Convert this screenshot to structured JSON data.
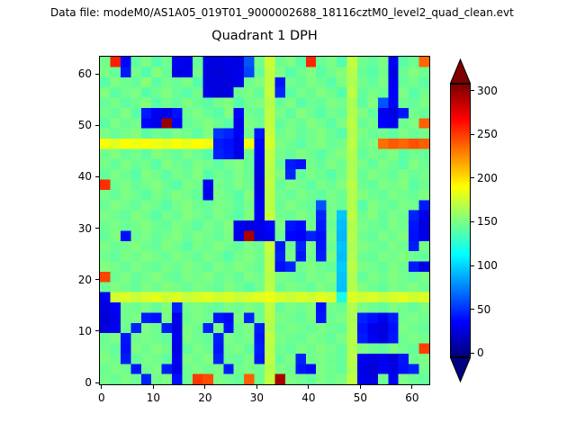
{
  "figure": {
    "datafile_label": "Data file: modeM0/AS1A05_019T01_9000002688_18116cztM0_level2_quad_clean.evt",
    "title": "Quadrant 1 DPH",
    "background": "#ffffff"
  },
  "chart_data": {
    "type": "heatmap",
    "title": "Quadrant 1 DPH",
    "xlabel": "",
    "ylabel": "",
    "x_ticks": [
      0,
      10,
      20,
      30,
      40,
      50,
      60
    ],
    "y_ticks": [
      0,
      10,
      20,
      30,
      40,
      50,
      60
    ],
    "x_range": [
      0,
      64
    ],
    "y_range": [
      0,
      64
    ],
    "colormap": "jet",
    "colorbar": {
      "ticks": [
        0,
        50,
        100,
        150,
        200,
        250,
        300
      ],
      "vmin": -5,
      "vmax": 308,
      "extend": "both",
      "position": "right"
    },
    "values_orientation": "rows top-to-bottom (y=63 down to y=0), columns left-to-right (x=0 to x=63)",
    "values_note": "32x32 downsampled estimate of the 64x64 detector pixel counts read from the colors",
    "values": [
      [
        148,
        260,
        35,
        142,
        150,
        138,
        146,
        30,
        28,
        144,
        26,
        24,
        27,
        25,
        60,
        148,
        175,
        146,
        152,
        139,
        258,
        145,
        150,
        137,
        172,
        147,
        143,
        150,
        32,
        140,
        146,
        238
      ],
      [
        150,
        144,
        40,
        148,
        137,
        153,
        145,
        26,
        29,
        147,
        25,
        22,
        26,
        28,
        55,
        143,
        172,
        150,
        138,
        146,
        152,
        140,
        147,
        153,
        168,
        144,
        139,
        148,
        27,
        145,
        152,
        146
      ],
      [
        139,
        151,
        146,
        143,
        155,
        140,
        148,
        145,
        150,
        138,
        24,
        26,
        23,
        27,
        146,
        152,
        170,
        40,
        147,
        143,
        150,
        146,
        139,
        151,
        166,
        148,
        142,
        150,
        30,
        144,
        148,
        141
      ],
      [
        152,
        140,
        147,
        150,
        138,
        146,
        152,
        144,
        139,
        148,
        27,
        23,
        25,
        146,
        150,
        143,
        173,
        45,
        140,
        148,
        145,
        152,
        146,
        138,
        170,
        143,
        149,
        145,
        33,
        150,
        139,
        147
      ],
      [
        144,
        149,
        141,
        146,
        153,
        139,
        147,
        143,
        151,
        145,
        140,
        148,
        152,
        138,
        147,
        150,
        168,
        144,
        151,
        139,
        146,
        143,
        150,
        147,
        165,
        141,
        152,
        60,
        35,
        146,
        143,
        150
      ],
      [
        147,
        143,
        152,
        139,
        42,
        30,
        27,
        38,
        146,
        150,
        144,
        139,
        152,
        35,
        147,
        143,
        170,
        149,
        141,
        153,
        146,
        139,
        148,
        144,
        167,
        151,
        142,
        30,
        26,
        40,
        147,
        143
      ],
      [
        141,
        150,
        145,
        148,
        35,
        28,
        300,
        33,
        143,
        147,
        152,
        145,
        139,
        28,
        150,
        146,
        172,
        142,
        149,
        144,
        152,
        147,
        140,
        150,
        169,
        144,
        148,
        34,
        29,
        146,
        151,
        239
      ],
      [
        150,
        144,
        148,
        152,
        140,
        146,
        143,
        150,
        147,
        141,
        152,
        50,
        45,
        30,
        148,
        40,
        174,
        146,
        150,
        143,
        147,
        152,
        145,
        139,
        168,
        150,
        144,
        147,
        141,
        150,
        145,
        148
      ],
      [
        188,
        182,
        190,
        185,
        192,
        186,
        183,
        189,
        184,
        191,
        186,
        42,
        38,
        28,
        188,
        35,
        178,
        150,
        146,
        141,
        148,
        152,
        144,
        148,
        170,
        146,
        150,
        235,
        242,
        238,
        244,
        240
      ],
      [
        146,
        151,
        143,
        148,
        140,
        152,
        147,
        143,
        150,
        145,
        139,
        44,
        40,
        26,
        146,
        32,
        172,
        148,
        143,
        151,
        146,
        140,
        148,
        152,
        167,
        143,
        149,
        146,
        152,
        140,
        147,
        144
      ],
      [
        149,
        142,
        151,
        145,
        148,
        139,
        152,
        146,
        143,
        150,
        147,
        141,
        148,
        152,
        145,
        28,
        170,
        144,
        42,
        38,
        148,
        143,
        151,
        146,
        165,
        149,
        142,
        150,
        146,
        139,
        152,
        145
      ],
      [
        143,
        150,
        146,
        139,
        152,
        147,
        141,
        149,
        145,
        152,
        138,
        147,
        143,
        150,
        146,
        26,
        168,
        151,
        45,
        143,
        150,
        146,
        139,
        148,
        166,
        144,
        151,
        147,
        143,
        150,
        145,
        148
      ],
      [
        255,
        146,
        150,
        143,
        148,
        152,
        145,
        139,
        150,
        147,
        32,
        148,
        144,
        151,
        146,
        25,
        171,
        143,
        150,
        147,
        141,
        149,
        145,
        152,
        169,
        146,
        143,
        150,
        147,
        152,
        140,
        146
      ],
      [
        148,
        143,
        151,
        146,
        140,
        149,
        145,
        152,
        147,
        143,
        28,
        150,
        146,
        139,
        152,
        27,
        169,
        147,
        143,
        150,
        146,
        141,
        149,
        145,
        167,
        152,
        146,
        143,
        150,
        147,
        144,
        151
      ],
      [
        145,
        152,
        147,
        143,
        150,
        146,
        139,
        148,
        152,
        146,
        143,
        150,
        147,
        141,
        149,
        30,
        170,
        145,
        152,
        146,
        143,
        60,
        148,
        145,
        168,
        139,
        152,
        146,
        143,
        150,
        147,
        42
      ],
      [
        150,
        146,
        143,
        151,
        147,
        140,
        148,
        145,
        152,
        147,
        143,
        150,
        146,
        139,
        152,
        32,
        172,
        148,
        144,
        151,
        146,
        45,
        149,
        95,
        170,
        146,
        152,
        143,
        150,
        146,
        44,
        28
      ],
      [
        146,
        150,
        144,
        148,
        152,
        146,
        143,
        150,
        147,
        141,
        149,
        145,
        152,
        30,
        26,
        28,
        35,
        150,
        40,
        36,
        148,
        42,
        146,
        92,
        166,
        150,
        146,
        143,
        151,
        147,
        40,
        25
      ],
      [
        143,
        151,
        38,
        146,
        150,
        143,
        148,
        152,
        145,
        150,
        147,
        143,
        150,
        27,
        295,
        25,
        30,
        146,
        35,
        32,
        44,
        38,
        150,
        90,
        168,
        147,
        143,
        150,
        146,
        152,
        38,
        27
      ],
      [
        150,
        145,
        148,
        152,
        146,
        143,
        151,
        147,
        140,
        149,
        146,
        152,
        147,
        143,
        150,
        146,
        174,
        40,
        147,
        44,
        150,
        40,
        146,
        94,
        165,
        151,
        147,
        144,
        150,
        146,
        42,
        148
      ],
      [
        147,
        143,
        150,
        146,
        152,
        148,
        144,
        151,
        147,
        143,
        150,
        146,
        139,
        148,
        152,
        146,
        170,
        43,
        150,
        40,
        147,
        42,
        151,
        92,
        167,
        146,
        143,
        150,
        147,
        152,
        146,
        143
      ],
      [
        152,
        148,
        144,
        150,
        146,
        143,
        149,
        145,
        151,
        147,
        143,
        150,
        146,
        152,
        148,
        144,
        171,
        38,
        44,
        147,
        151,
        146,
        143,
        96,
        169,
        150,
        147,
        143,
        151,
        146,
        41,
        27
      ],
      [
        248,
        146,
        150,
        143,
        148,
        152,
        146,
        143,
        150,
        147,
        152,
        145,
        148,
        143,
        151,
        147,
        168,
        150,
        146,
        143,
        150,
        147,
        151,
        94,
        166,
        143,
        150,
        146,
        152,
        147,
        143,
        150
      ],
      [
        145,
        151,
        147,
        143,
        150,
        146,
        152,
        148,
        144,
        150,
        147,
        143,
        151,
        146,
        139,
        148,
        170,
        145,
        151,
        147,
        143,
        150,
        146,
        93,
        168,
        152,
        146,
        143,
        150,
        147,
        152,
        146
      ],
      [
        30,
        176,
        180,
        174,
        178,
        182,
        176,
        180,
        174,
        178,
        182,
        176,
        180,
        174,
        178,
        182,
        185,
        178,
        174,
        180,
        176,
        182,
        178,
        120,
        180,
        176,
        180,
        174,
        178,
        182,
        176,
        180
      ],
      [
        25,
        32,
        148,
        146,
        150,
        143,
        152,
        44,
        147,
        150,
        146,
        143,
        150,
        147,
        152,
        146,
        170,
        143,
        150,
        146,
        152,
        38,
        148,
        145,
        167,
        150,
        146,
        143,
        151,
        147,
        143,
        150
      ],
      [
        22,
        28,
        147,
        150,
        42,
        38,
        150,
        28,
        146,
        150,
        147,
        40,
        36,
        150,
        44,
        146,
        169,
        150,
        147,
        143,
        151,
        40,
        146,
        150,
        165,
        44,
        38,
        30,
        42,
        147,
        150,
        146
      ],
      [
        24,
        30,
        146,
        44,
        150,
        146,
        42,
        26,
        150,
        146,
        44,
        150,
        38,
        146,
        150,
        42,
        168,
        146,
        150,
        147,
        143,
        150,
        146,
        143,
        166,
        40,
        28,
        24,
        38,
        150,
        146,
        143
      ],
      [
        146,
        150,
        40,
        147,
        150,
        146,
        143,
        28,
        150,
        146,
        143,
        42,
        150,
        146,
        150,
        40,
        170,
        150,
        146,
        143,
        150,
        147,
        143,
        150,
        168,
        42,
        30,
        26,
        40,
        146,
        150,
        147
      ],
      [
        147,
        143,
        38,
        150,
        146,
        152,
        147,
        26,
        143,
        150,
        146,
        40,
        147,
        150,
        143,
        42,
        169,
        147,
        143,
        150,
        146,
        152,
        147,
        143,
        167,
        150,
        146,
        143,
        150,
        147,
        143,
        250
      ],
      [
        150,
        146,
        42,
        143,
        150,
        147,
        143,
        30,
        150,
        146,
        152,
        44,
        146,
        143,
        150,
        40,
        171,
        143,
        150,
        44,
        147,
        150,
        146,
        143,
        169,
        30,
        26,
        28,
        24,
        40,
        146,
        150
      ],
      [
        146,
        150,
        147,
        40,
        146,
        150,
        42,
        28,
        147,
        150,
        146,
        150,
        42,
        147,
        150,
        146,
        168,
        150,
        146,
        40,
        36,
        150,
        147,
        143,
        166,
        26,
        22,
        30,
        26,
        38,
        44,
        147
      ],
      [
        148,
        145,
        150,
        146,
        44,
        148,
        150,
        38,
        146,
        252,
        246,
        150,
        147,
        143,
        240,
        146,
        172,
        295,
        150,
        146,
        143,
        150,
        146,
        150,
        170,
        28,
        24,
        146,
        30,
        150,
        146,
        143
      ]
    ]
  }
}
